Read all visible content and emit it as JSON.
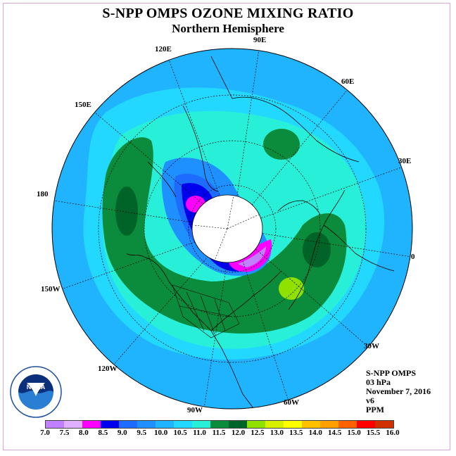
{
  "title": "S-NPP OMPS OZONE MIXING RATIO",
  "subtitle": "Northern Hemisphere",
  "longitude_labels": [
    "90E",
    "60E",
    "30E",
    "0",
    "30W",
    "60W",
    "90W",
    "120W",
    "150W",
    "180",
    "150E",
    "120E"
  ],
  "info": {
    "instrument": "S-NPP OMPS",
    "level": "03 hPa",
    "date": "November 7, 2016",
    "version": "v6",
    "units": "PPM"
  },
  "logo_text": "NOAA",
  "colorbar": {
    "ticks": [
      "7.0",
      "7.5",
      "8.0",
      "8.5",
      "9.0",
      "9.5",
      "10.0",
      "10.5",
      "11.0",
      "11.5",
      "12.0",
      "12.5",
      "13.0",
      "13.5",
      "14.0",
      "14.5",
      "15.0",
      "15.5",
      "16.0"
    ],
    "colors": [
      "#c080ff",
      "#e0b0ff",
      "#ff00ff",
      "#0000ee",
      "#1e6cff",
      "#1e90ff",
      "#20b4ff",
      "#22d8ff",
      "#28f0d8",
      "#0a8c3c",
      "#006428",
      "#90e000",
      "#d8f000",
      "#ffff00",
      "#ffc000",
      "#ffa000",
      "#ff6000",
      "#ff0000",
      "#d03000",
      "#8c5030"
    ]
  }
}
